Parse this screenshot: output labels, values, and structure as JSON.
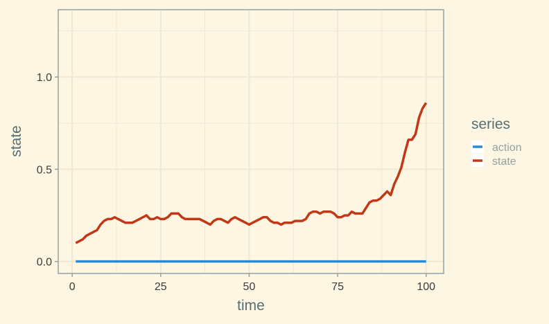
{
  "chart_data": {
    "type": "line",
    "xlabel": "time",
    "ylabel": "state",
    "xlim": [
      -3.95,
      104.95
    ],
    "ylim": [
      -0.065,
      1.365
    ],
    "x_ticks": [
      0,
      25,
      50,
      75,
      100
    ],
    "x_tick_labels": [
      "0",
      "25",
      "50",
      "75",
      "100"
    ],
    "y_ticks": [
      0,
      0.5,
      1.0
    ],
    "y_tick_labels": [
      "0.0",
      "0.5",
      "1.0"
    ],
    "grid": true,
    "legend": {
      "title": "series",
      "position": "right"
    },
    "series": [
      {
        "name": "action",
        "color": "#268bd2",
        "x": [
          1,
          100
        ],
        "values": [
          0,
          0
        ]
      },
      {
        "name": "state",
        "color": "#c03818",
        "x": [
          1,
          2,
          3,
          4,
          5,
          6,
          7,
          8,
          9,
          10,
          11,
          12,
          13,
          14,
          15,
          16,
          17,
          18,
          19,
          20,
          21,
          22,
          23,
          24,
          25,
          26,
          27,
          28,
          29,
          30,
          31,
          32,
          33,
          34,
          35,
          36,
          37,
          38,
          39,
          40,
          41,
          42,
          43,
          44,
          45,
          46,
          47,
          48,
          49,
          50,
          51,
          52,
          53,
          54,
          55,
          56,
          57,
          58,
          59,
          60,
          61,
          62,
          63,
          64,
          65,
          66,
          67,
          68,
          69,
          70,
          71,
          72,
          73,
          74,
          75,
          76,
          77,
          78,
          79,
          80,
          81,
          82,
          83,
          84,
          85,
          86,
          87,
          88,
          89,
          90,
          91,
          92,
          93,
          94,
          95,
          96,
          97,
          98,
          99,
          100
        ],
        "values": [
          0.1,
          0.11,
          0.12,
          0.14,
          0.15,
          0.16,
          0.17,
          0.2,
          0.22,
          0.23,
          0.23,
          0.24,
          0.23,
          0.22,
          0.21,
          0.21,
          0.21,
          0.22,
          0.23,
          0.24,
          0.25,
          0.23,
          0.23,
          0.24,
          0.23,
          0.23,
          0.24,
          0.26,
          0.26,
          0.26,
          0.24,
          0.23,
          0.23,
          0.23,
          0.23,
          0.23,
          0.22,
          0.21,
          0.2,
          0.22,
          0.23,
          0.23,
          0.22,
          0.21,
          0.23,
          0.24,
          0.23,
          0.22,
          0.21,
          0.2,
          0.21,
          0.22,
          0.23,
          0.24,
          0.24,
          0.22,
          0.21,
          0.21,
          0.2,
          0.21,
          0.21,
          0.21,
          0.22,
          0.22,
          0.22,
          0.23,
          0.26,
          0.27,
          0.27,
          0.26,
          0.27,
          0.27,
          0.27,
          0.26,
          0.24,
          0.24,
          0.25,
          0.25,
          0.27,
          0.26,
          0.26,
          0.26,
          0.29,
          0.32,
          0.33,
          0.33,
          0.34,
          0.36,
          0.38,
          0.36,
          0.42,
          0.46,
          0.51,
          0.59,
          0.66,
          0.66,
          0.69,
          0.78,
          0.83,
          0.86
        ]
      }
    ]
  }
}
